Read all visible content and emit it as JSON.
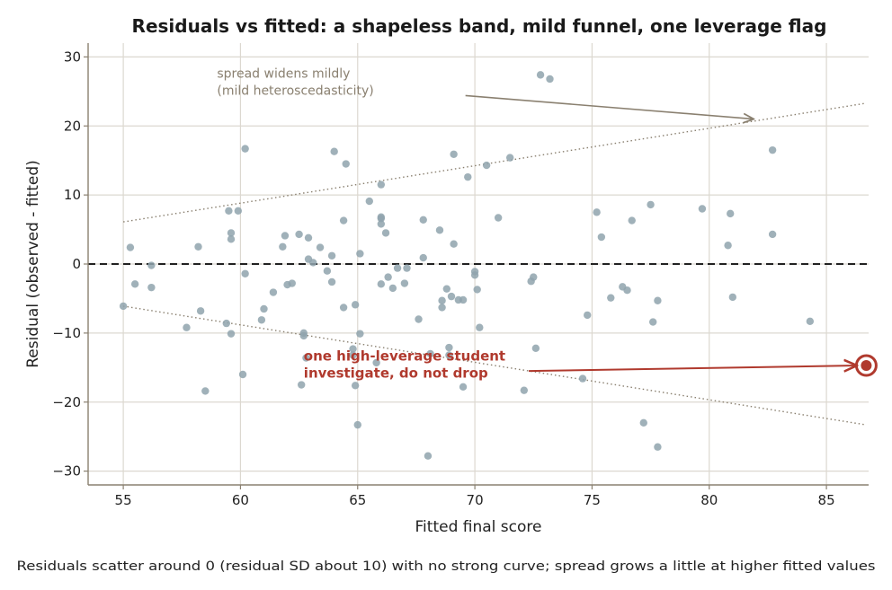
{
  "chart_data": {
    "type": "scatter",
    "title": "Residuals vs fitted: a shapeless band, mild funnel, one leverage flag",
    "xlabel": "Fitted final score",
    "ylabel": "Residual (observed - fitted)",
    "caption": "Residuals scatter around 0 (residual SD about 10) with no strong curve; spread grows a little at higher fitted values",
    "xlim": [
      53.5,
      86.8
    ],
    "ylim": [
      -32,
      32
    ],
    "xticks": [
      55,
      60,
      65,
      70,
      75,
      80,
      85
    ],
    "yticks": [
      -30,
      -20,
      -10,
      0,
      10,
      20,
      30
    ],
    "xtick_labels": [
      "55",
      "60",
      "65",
      "70",
      "75",
      "80",
      "85"
    ],
    "ytick_labels": [
      "−30",
      "−20",
      "−10",
      "0",
      "10",
      "20",
      "30"
    ],
    "grid": true,
    "zero_line": 0,
    "point_color": "#8fa3ad",
    "highlight_color": "#b03a2e",
    "annotation_color": "#8a8070",
    "points": [
      [
        55.0,
        -6.1
      ],
      [
        55.3,
        2.4
      ],
      [
        55.5,
        -2.9
      ],
      [
        56.2,
        -0.2
      ],
      [
        56.2,
        -3.4
      ],
      [
        57.7,
        -9.2
      ],
      [
        58.2,
        2.5
      ],
      [
        58.3,
        -6.8
      ],
      [
        58.5,
        -18.4
      ],
      [
        59.4,
        -8.6
      ],
      [
        59.5,
        7.7
      ],
      [
        59.6,
        -10.1
      ],
      [
        59.6,
        4.5
      ],
      [
        59.6,
        3.6
      ],
      [
        59.9,
        7.7
      ],
      [
        60.1,
        -16.0
      ],
      [
        60.2,
        -1.4
      ],
      [
        60.2,
        16.7
      ],
      [
        60.9,
        -8.1
      ],
      [
        61.0,
        -6.5
      ],
      [
        61.4,
        -4.1
      ],
      [
        61.8,
        2.5
      ],
      [
        61.9,
        4.1
      ],
      [
        62.0,
        -3.0
      ],
      [
        62.2,
        -2.8
      ],
      [
        62.5,
        4.3
      ],
      [
        62.6,
        -17.5
      ],
      [
        62.7,
        -10.0
      ],
      [
        62.7,
        -10.4
      ],
      [
        62.8,
        -13.6
      ],
      [
        62.9,
        0.7
      ],
      [
        62.9,
        3.8
      ],
      [
        63.1,
        0.2
      ],
      [
        63.4,
        2.4
      ],
      [
        63.7,
        -1.0
      ],
      [
        63.9,
        1.2
      ],
      [
        63.9,
        -2.6
      ],
      [
        64.0,
        16.3
      ],
      [
        64.4,
        -6.3
      ],
      [
        64.4,
        6.3
      ],
      [
        64.5,
        14.5
      ],
      [
        64.8,
        -12.3
      ],
      [
        64.8,
        -13.2
      ],
      [
        64.9,
        -5.9
      ],
      [
        64.9,
        -17.6
      ],
      [
        65.0,
        -23.3
      ],
      [
        65.1,
        -10.1
      ],
      [
        65.1,
        1.5
      ],
      [
        65.5,
        9.1
      ],
      [
        65.8,
        -14.3
      ],
      [
        66.0,
        6.6
      ],
      [
        66.0,
        5.8
      ],
      [
        66.0,
        -2.9
      ],
      [
        66.0,
        11.5
      ],
      [
        66.0,
        6.8
      ],
      [
        66.2,
        4.5
      ],
      [
        66.3,
        -1.9
      ],
      [
        66.5,
        -3.5
      ],
      [
        66.7,
        -0.6
      ],
      [
        67.0,
        -2.8
      ],
      [
        67.1,
        -0.6
      ],
      [
        67.6,
        -8.0
      ],
      [
        67.8,
        6.4
      ],
      [
        67.8,
        0.9
      ],
      [
        68.0,
        -27.8
      ],
      [
        68.1,
        -13.0
      ],
      [
        68.5,
        4.9
      ],
      [
        68.6,
        -6.3
      ],
      [
        68.6,
        -5.3
      ],
      [
        68.8,
        -3.6
      ],
      [
        68.9,
        -12.1
      ],
      [
        68.9,
        -13.2
      ],
      [
        69.0,
        -4.7
      ],
      [
        69.1,
        15.9
      ],
      [
        69.1,
        2.9
      ],
      [
        69.3,
        -5.2
      ],
      [
        69.5,
        -5.2
      ],
      [
        69.5,
        -17.8
      ],
      [
        69.7,
        12.6
      ],
      [
        70.0,
        -1.1
      ],
      [
        70.0,
        -1.6
      ],
      [
        70.1,
        -3.7
      ],
      [
        70.2,
        -9.2
      ],
      [
        70.5,
        14.3
      ],
      [
        71.0,
        6.7
      ],
      [
        71.5,
        15.4
      ],
      [
        72.1,
        -18.3
      ],
      [
        72.4,
        -2.5
      ],
      [
        72.5,
        -1.9
      ],
      [
        72.6,
        -12.2
      ],
      [
        72.8,
        27.4
      ],
      [
        73.2,
        26.8
      ],
      [
        74.6,
        -16.6
      ],
      [
        74.8,
        -7.4
      ],
      [
        75.2,
        7.5
      ],
      [
        75.4,
        3.9
      ],
      [
        75.8,
        -4.9
      ],
      [
        76.3,
        -3.3
      ],
      [
        76.5,
        -3.8
      ],
      [
        76.7,
        6.3
      ],
      [
        77.2,
        -23.0
      ],
      [
        77.5,
        8.6
      ],
      [
        77.6,
        -8.4
      ],
      [
        77.8,
        -5.3
      ],
      [
        77.8,
        -26.5
      ],
      [
        79.7,
        8.0
      ],
      [
        80.8,
        2.7
      ],
      [
        80.9,
        7.3
      ],
      [
        81.0,
        -4.8
      ],
      [
        82.7,
        16.5
      ],
      [
        82.7,
        4.3
      ],
      [
        84.3,
        -8.3
      ]
    ],
    "highlight_point": [
      86.7,
      -14.7
    ],
    "band_upper": {
      "x": [
        55.0,
        86.7
      ],
      "y": [
        6.1,
        23.3
      ]
    },
    "band_lower": {
      "x": [
        55.0,
        86.7
      ],
      "y": [
        -6.1,
        -23.3
      ]
    },
    "annotations": [
      {
        "lines": [
          "spread widens mildly",
          "(mild heteroscedasticity)"
        ],
        "text_xy": [
          59.0,
          27.0
        ],
        "arrow_from": [
          69.6,
          24.4
        ],
        "arrow_to": [
          81.9,
          21.0
        ]
      },
      {
        "lines": [
          "one high-leverage student",
          "investigate, do not drop"
        ],
        "text_xy": [
          62.7,
          -14.0
        ],
        "arrow_from": [
          72.3,
          -15.5
        ],
        "arrow_to": [
          86.3,
          -14.7
        ]
      }
    ]
  }
}
